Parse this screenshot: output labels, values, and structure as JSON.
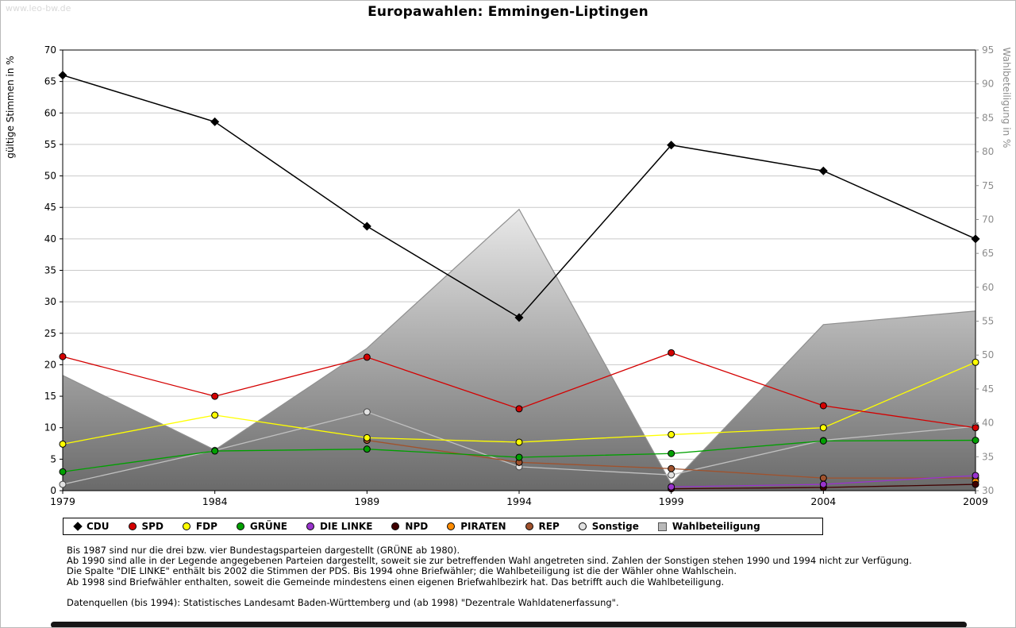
{
  "watermark": "www.leo-bw.de",
  "title": "Europawahlen: Emmingen-Liptingen",
  "chart_data": {
    "type": "line",
    "title": "Europawahlen: Emmingen-Liptingen",
    "categories": [
      "1979",
      "1984",
      "1989",
      "1994",
      "1999",
      "2004",
      "2009"
    ],
    "grid": true,
    "legend_position": "bottom",
    "y_left": {
      "label": "gültige Stimmen in %",
      "min": 0,
      "max": 70,
      "step": 5
    },
    "y_right": {
      "label": "Wahlbeteiligung in %",
      "min": 30,
      "max": 95,
      "step": 5
    },
    "series": [
      {
        "id": "cdu",
        "name": "CDU",
        "axis": "left",
        "marker": "diamond",
        "color": "#000000",
        "values": [
          66,
          58.6,
          42,
          27.5,
          54.9,
          50.8,
          40
        ]
      },
      {
        "id": "spd",
        "name": "SPD",
        "axis": "left",
        "marker": "circle",
        "color": "#d40000",
        "values": [
          21.3,
          15,
          21.2,
          13,
          21.9,
          13.5,
          10
        ]
      },
      {
        "id": "fdp",
        "name": "FDP",
        "axis": "left",
        "marker": "circle",
        "color": "#ffff00",
        "values": [
          7.4,
          12,
          8.4,
          7.7,
          8.9,
          10,
          20.4
        ]
      },
      {
        "id": "gruene",
        "name": "GRÜNE",
        "axis": "left",
        "marker": "circle",
        "color": "#00a000",
        "values": [
          3,
          6.3,
          6.6,
          5.3,
          5.9,
          7.9,
          8
        ]
      },
      {
        "id": "die-linke",
        "name": "DIE LINKE",
        "axis": "left",
        "marker": "circle",
        "color": "#9933cc",
        "values": [
          null,
          null,
          null,
          null,
          0.6,
          1,
          2.4
        ]
      },
      {
        "id": "npd",
        "name": "NPD",
        "axis": "left",
        "marker": "circle",
        "color": "#400000",
        "values": [
          null,
          null,
          null,
          null,
          0.3,
          0.5,
          1
        ]
      },
      {
        "id": "piraten",
        "name": "PIRATEN",
        "axis": "left",
        "marker": "circle",
        "color": "#ff8c00",
        "values": [
          null,
          null,
          null,
          null,
          null,
          null,
          1.5
        ]
      },
      {
        "id": "rep",
        "name": "REP",
        "axis": "left",
        "marker": "circle",
        "color": "#a0522d",
        "values": [
          null,
          null,
          8,
          4.5,
          3.5,
          2,
          2
        ]
      },
      {
        "id": "sonstige",
        "name": "Sonstige",
        "axis": "left",
        "marker": "circle",
        "color": "#c0c0c0",
        "marker_fill": "#e2e2e2",
        "marker_stroke": "#444444",
        "values": [
          1,
          6.4,
          12.5,
          3.8,
          2.5,
          8,
          10.2
        ]
      },
      {
        "id": "wahlbeteiligung",
        "name": "Wahlbeteiligung",
        "axis": "right",
        "type": "area",
        "color": "#b8b8b8",
        "values": [
          47,
          36,
          51,
          71.5,
          31,
          54.5,
          56.5
        ]
      }
    ],
    "area_gradient": {
      "top": "#e9e9e9",
      "bottom": "#6a6a6a",
      "edge": "#8f8f8f"
    },
    "grid_color": "#c9c9c9",
    "right_axis_color": "#8c8c8c",
    "notes": [
      "Bis 1987 sind nur die drei bzw. vier Bundestagsparteien dargestellt (GRÜNE ab 1980).",
      "Ab 1990 sind alle in der Legende angegebenen Parteien dargestellt, soweit sie zur betreffenden Wahl angetreten sind. Zahlen der Sonstigen stehen 1990 und 1994 nicht zur Verfügung.",
      "Die Spalte \"DIE LINKE\" enthält bis 2002 die Stimmen der PDS. Bis 1994 ohne Briefwähler; die Wahlbeteiligung ist die der Wähler ohne Wahlschein.",
      "Ab 1998 sind Briefwähler enthalten, soweit die Gemeinde mindestens einen eigenen Briefwahlbezirk hat. Das betrifft auch die Wahlbeteiligung."
    ],
    "source": "Datenquellen (bis 1994): Statistisches Landesamt Baden-Württemberg und (ab 1998) \"Dezentrale Wahldatenerfassung\"."
  }
}
